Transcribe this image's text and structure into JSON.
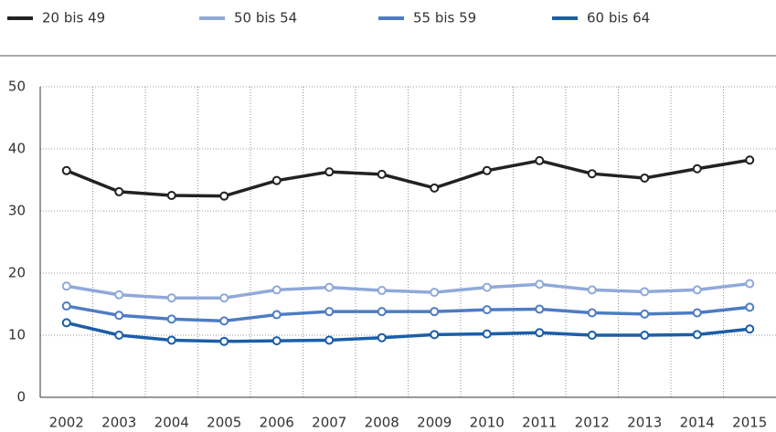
{
  "chart_data": {
    "type": "line",
    "categories": [
      "2002",
      "2003",
      "2004",
      "2005",
      "2006",
      "2007",
      "2008",
      "2009",
      "2010",
      "2011",
      "2012",
      "2013",
      "2014",
      "2015"
    ],
    "series": [
      {
        "name": "20 bis 49",
        "color": "#222222",
        "values": [
          36.5,
          33.1,
          32.5,
          32.4,
          34.9,
          36.3,
          35.9,
          33.7,
          36.5,
          38.1,
          36.0,
          35.3,
          36.8,
          38.2
        ]
      },
      {
        "name": "50 bis 54",
        "color": "#8fa9d9",
        "values": [
          17.9,
          16.5,
          16.0,
          16.0,
          17.3,
          17.7,
          17.2,
          16.9,
          17.7,
          18.2,
          17.3,
          17.0,
          17.3,
          18.3
        ]
      },
      {
        "name": "55 bis 59",
        "color": "#4d7cc4",
        "values": [
          14.7,
          13.2,
          12.6,
          12.3,
          13.3,
          13.8,
          13.8,
          13.8,
          14.1,
          14.2,
          13.6,
          13.4,
          13.6,
          14.5
        ]
      },
      {
        "name": "60 bis 64",
        "color": "#1a5ea8",
        "values": [
          12.0,
          10.0,
          9.2,
          9.0,
          9.1,
          9.2,
          9.6,
          10.1,
          10.2,
          10.4,
          10.0,
          10.0,
          10.1,
          11.0
        ]
      }
    ],
    "ylim": [
      0,
      50
    ],
    "yticks": [
      0,
      10,
      20,
      30,
      40,
      50
    ],
    "grid": true
  }
}
